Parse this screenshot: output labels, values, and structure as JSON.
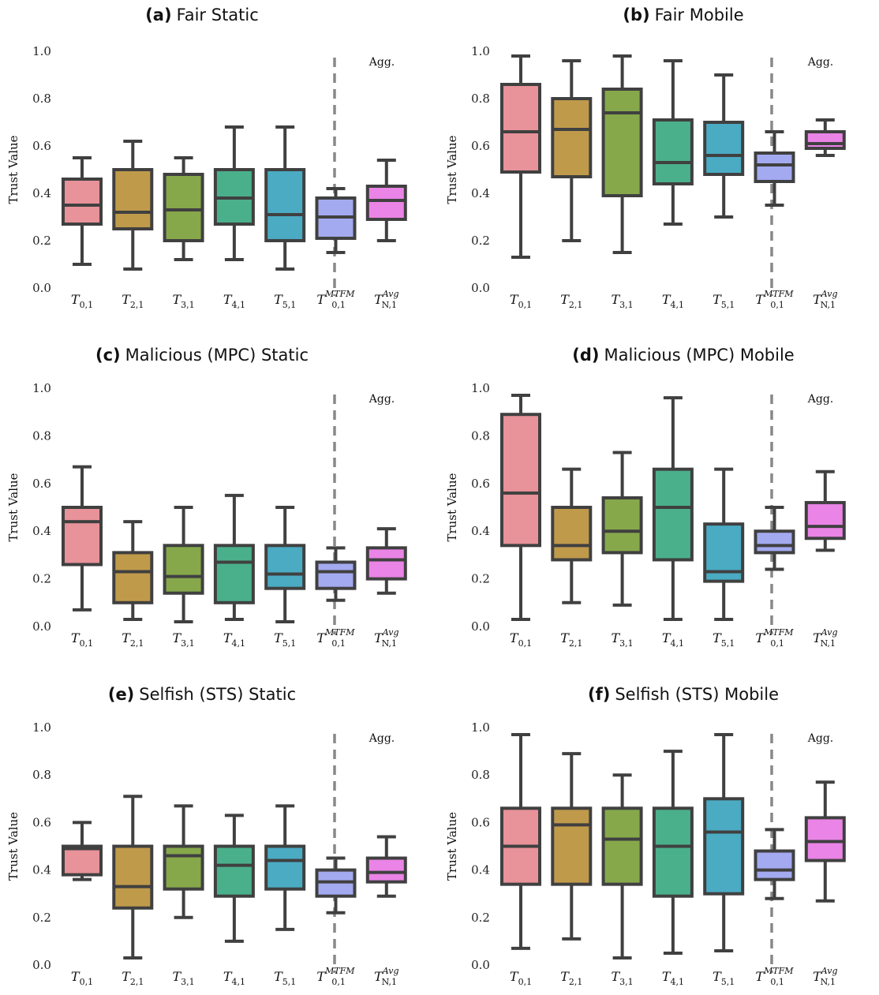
{
  "chart_data": [
    {
      "type": "box",
      "title_tag": "(a)",
      "title_text": "Fair Static",
      "ylabel": "Trust Value",
      "ylim": [
        0,
        1
      ],
      "yticks": [
        "0.0",
        "0.2",
        "0.4",
        "0.6",
        "0.8",
        "1.0"
      ],
      "agg_label": "Agg.",
      "boxes": [
        {
          "min": 0.1,
          "q1": 0.27,
          "median": 0.35,
          "q3": 0.46,
          "max": 0.55
        },
        {
          "min": 0.08,
          "q1": 0.25,
          "median": 0.32,
          "q3": 0.5,
          "max": 0.62
        },
        {
          "min": 0.12,
          "q1": 0.2,
          "median": 0.33,
          "q3": 0.48,
          "max": 0.55
        },
        {
          "min": 0.12,
          "q1": 0.27,
          "median": 0.38,
          "q3": 0.5,
          "max": 0.68
        },
        {
          "min": 0.08,
          "q1": 0.2,
          "median": 0.31,
          "q3": 0.5,
          "max": 0.68
        },
        {
          "min": 0.15,
          "q1": 0.21,
          "median": 0.3,
          "q3": 0.38,
          "max": 0.42
        },
        {
          "min": 0.2,
          "q1": 0.29,
          "median": 0.37,
          "q3": 0.43,
          "max": 0.54
        }
      ]
    },
    {
      "type": "box",
      "title_tag": "(b)",
      "title_text": "Fair Mobile",
      "ylabel": "Trust Value",
      "ylim": [
        0,
        1
      ],
      "yticks": [
        "0.0",
        "0.2",
        "0.4",
        "0.6",
        "0.8",
        "1.0"
      ],
      "agg_label": "Agg.",
      "boxes": [
        {
          "min": 0.13,
          "q1": 0.49,
          "median": 0.66,
          "q3": 0.86,
          "max": 0.98
        },
        {
          "min": 0.2,
          "q1": 0.47,
          "median": 0.67,
          "q3": 0.8,
          "max": 0.96
        },
        {
          "min": 0.15,
          "q1": 0.39,
          "median": 0.74,
          "q3": 0.84,
          "max": 0.98
        },
        {
          "min": 0.27,
          "q1": 0.44,
          "median": 0.53,
          "q3": 0.71,
          "max": 0.96
        },
        {
          "min": 0.3,
          "q1": 0.48,
          "median": 0.56,
          "q3": 0.7,
          "max": 0.9
        },
        {
          "min": 0.35,
          "q1": 0.45,
          "median": 0.52,
          "q3": 0.57,
          "max": 0.66
        },
        {
          "min": 0.56,
          "q1": 0.59,
          "median": 0.61,
          "q3": 0.66,
          "max": 0.71
        }
      ]
    },
    {
      "type": "box",
      "title_tag": "(c)",
      "title_text": "Malicious (MPC) Static",
      "ylabel": "Trust Value",
      "ylim": [
        0,
        1
      ],
      "yticks": [
        "0.0",
        "0.2",
        "0.4",
        "0.6",
        "0.8",
        "1.0"
      ],
      "agg_label": "Agg.",
      "boxes": [
        {
          "min": 0.07,
          "q1": 0.26,
          "median": 0.44,
          "q3": 0.5,
          "max": 0.67
        },
        {
          "min": 0.03,
          "q1": 0.1,
          "median": 0.23,
          "q3": 0.31,
          "max": 0.44
        },
        {
          "min": 0.02,
          "q1": 0.14,
          "median": 0.21,
          "q3": 0.34,
          "max": 0.5
        },
        {
          "min": 0.03,
          "q1": 0.1,
          "median": 0.27,
          "q3": 0.34,
          "max": 0.55
        },
        {
          "min": 0.02,
          "q1": 0.16,
          "median": 0.22,
          "q3": 0.34,
          "max": 0.5
        },
        {
          "min": 0.11,
          "q1": 0.16,
          "median": 0.23,
          "q3": 0.27,
          "max": 0.33
        },
        {
          "min": 0.14,
          "q1": 0.2,
          "median": 0.28,
          "q3": 0.33,
          "max": 0.41
        }
      ]
    },
    {
      "type": "box",
      "title_tag": "(d)",
      "title_text": "Malicious (MPC) Mobile",
      "ylabel": "Trust Value",
      "ylim": [
        0,
        1
      ],
      "yticks": [
        "0.0",
        "0.2",
        "0.4",
        "0.6",
        "0.8",
        "1.0"
      ],
      "agg_label": "Agg.",
      "boxes": [
        {
          "min": 0.03,
          "q1": 0.34,
          "median": 0.56,
          "q3": 0.89,
          "max": 0.97
        },
        {
          "min": 0.1,
          "q1": 0.28,
          "median": 0.34,
          "q3": 0.5,
          "max": 0.66
        },
        {
          "min": 0.09,
          "q1": 0.31,
          "median": 0.4,
          "q3": 0.54,
          "max": 0.73
        },
        {
          "min": 0.03,
          "q1": 0.28,
          "median": 0.5,
          "q3": 0.66,
          "max": 0.96
        },
        {
          "min": 0.03,
          "q1": 0.19,
          "median": 0.23,
          "q3": 0.43,
          "max": 0.66
        },
        {
          "min": 0.24,
          "q1": 0.31,
          "median": 0.34,
          "q3": 0.4,
          "max": 0.5
        },
        {
          "min": 0.32,
          "q1": 0.37,
          "median": 0.42,
          "q3": 0.52,
          "max": 0.65
        }
      ]
    },
    {
      "type": "box",
      "title_tag": "(e)",
      "title_text": "Selfish (STS) Static",
      "ylabel": "Trust Value",
      "ylim": [
        0,
        1
      ],
      "yticks": [
        "0.0",
        "0.2",
        "0.4",
        "0.6",
        "0.8",
        "1.0"
      ],
      "agg_label": "Agg.",
      "boxes": [
        {
          "min": 0.36,
          "q1": 0.38,
          "median": 0.49,
          "q3": 0.5,
          "max": 0.6
        },
        {
          "min": 0.03,
          "q1": 0.24,
          "median": 0.33,
          "q3": 0.5,
          "max": 0.71
        },
        {
          "min": 0.2,
          "q1": 0.32,
          "median": 0.46,
          "q3": 0.5,
          "max": 0.67
        },
        {
          "min": 0.1,
          "q1": 0.29,
          "median": 0.42,
          "q3": 0.5,
          "max": 0.63
        },
        {
          "min": 0.15,
          "q1": 0.32,
          "median": 0.44,
          "q3": 0.5,
          "max": 0.67
        },
        {
          "min": 0.22,
          "q1": 0.29,
          "median": 0.35,
          "q3": 0.4,
          "max": 0.45
        },
        {
          "min": 0.29,
          "q1": 0.35,
          "median": 0.39,
          "q3": 0.45,
          "max": 0.54
        }
      ]
    },
    {
      "type": "box",
      "title_tag": "(f)",
      "title_text": "Selfish (STS) Mobile",
      "ylabel": "Trust Value",
      "ylim": [
        0,
        1
      ],
      "yticks": [
        "0.0",
        "0.2",
        "0.4",
        "0.6",
        "0.8",
        "1.0"
      ],
      "agg_label": "Agg.",
      "boxes": [
        {
          "min": 0.07,
          "q1": 0.34,
          "median": 0.5,
          "q3": 0.66,
          "max": 0.97
        },
        {
          "min": 0.11,
          "q1": 0.34,
          "median": 0.59,
          "q3": 0.66,
          "max": 0.89
        },
        {
          "min": 0.03,
          "q1": 0.34,
          "median": 0.53,
          "q3": 0.66,
          "max": 0.8
        },
        {
          "min": 0.05,
          "q1": 0.29,
          "median": 0.5,
          "q3": 0.66,
          "max": 0.9
        },
        {
          "min": 0.06,
          "q1": 0.3,
          "median": 0.56,
          "q3": 0.7,
          "max": 0.97
        },
        {
          "min": 0.28,
          "q1": 0.36,
          "median": 0.4,
          "q3": 0.48,
          "max": 0.57
        },
        {
          "min": 0.27,
          "q1": 0.44,
          "median": 0.52,
          "q3": 0.62,
          "max": 0.77
        }
      ]
    }
  ],
  "categories": [
    {
      "base": "T",
      "sub": "0,1",
      "sup": ""
    },
    {
      "base": "T",
      "sub": "2,1",
      "sup": ""
    },
    {
      "base": "T",
      "sub": "3,1",
      "sup": ""
    },
    {
      "base": "T",
      "sub": "4,1",
      "sup": ""
    },
    {
      "base": "T",
      "sub": "5,1",
      "sup": ""
    },
    {
      "base": "T",
      "sub": "0,1",
      "sup": "MTFM"
    },
    {
      "base": "T",
      "sub": "N,1",
      "sup": "Avg"
    }
  ],
  "colors": [
    "#e8929a",
    "#c09a4b",
    "#86a84b",
    "#4ab08c",
    "#4aabc3",
    "#a3aaf0",
    "#ea84e6"
  ]
}
